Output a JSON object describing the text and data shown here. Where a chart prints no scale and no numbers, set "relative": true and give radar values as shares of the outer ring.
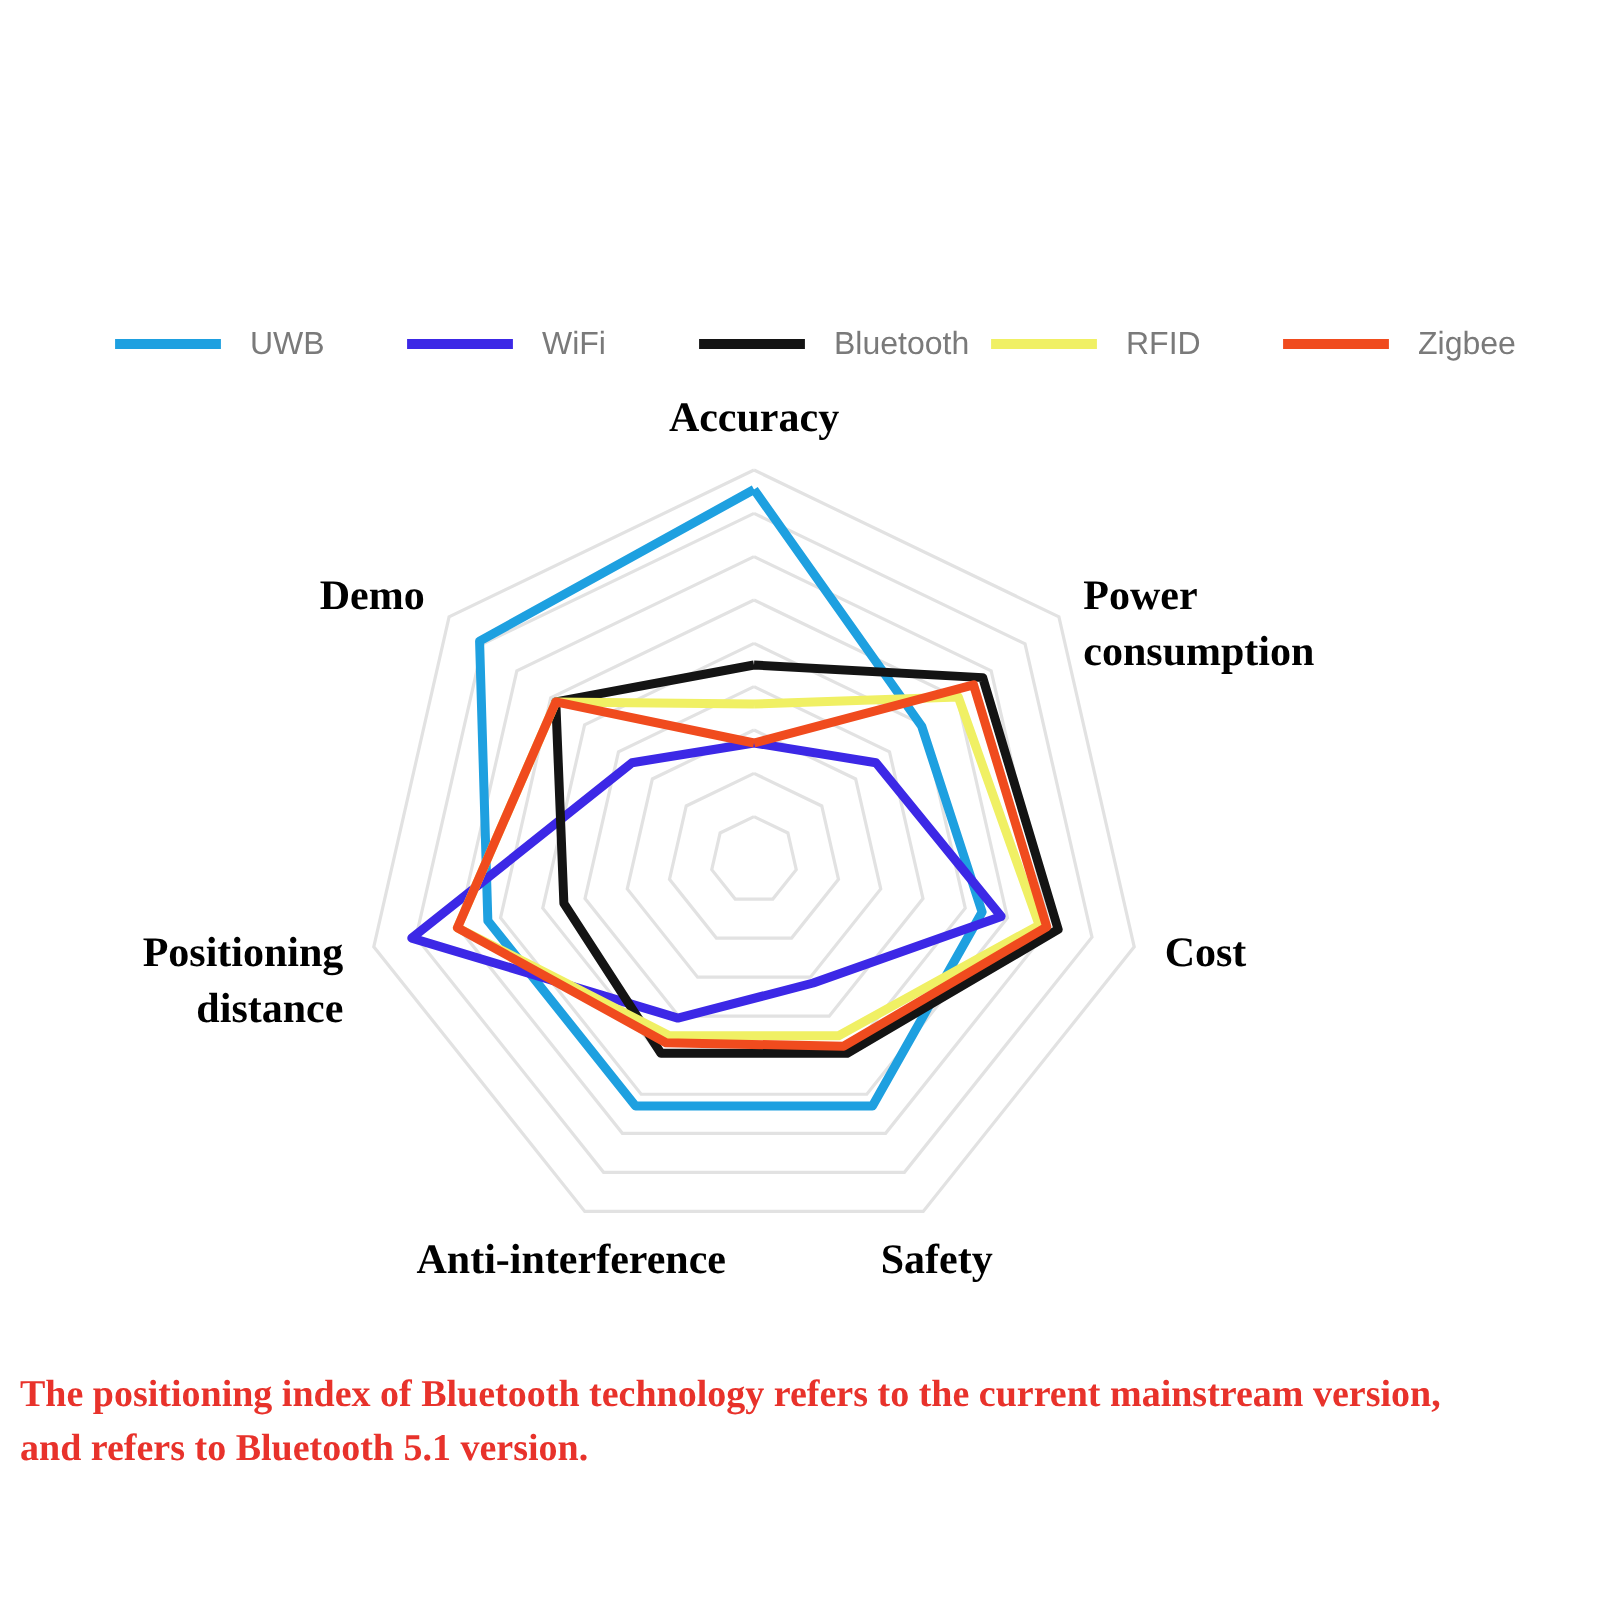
{
  "chart_data": {
    "type": "radar",
    "categories": [
      "Accuracy",
      "Power consumption",
      "Cost",
      "Safety",
      "Anti-interference",
      "Positioning distance",
      "Demo"
    ],
    "series": [
      {
        "name": "UWB",
        "color": "#1ea0e0",
        "values": [
          0.95,
          0.55,
          0.6,
          0.7,
          0.7,
          0.7,
          0.9
        ]
      },
      {
        "name": "WiFi",
        "color": "#3c28e6",
        "values": [
          0.3,
          0.4,
          0.65,
          0.35,
          0.45,
          0.9,
          0.4
        ]
      },
      {
        "name": "Bluetooth",
        "color": "#141414",
        "values": [
          0.5,
          0.75,
          0.8,
          0.55,
          0.55,
          0.5,
          0.65
        ]
      },
      {
        "name": "RFID",
        "color": "#f0f064",
        "values": [
          0.4,
          0.67,
          0.75,
          0.5,
          0.5,
          0.78,
          0.65
        ]
      },
      {
        "name": "Zigbee",
        "color": "#f04b1e",
        "values": [
          0.3,
          0.72,
          0.77,
          0.53,
          0.52,
          0.78,
          0.65
        ]
      }
    ],
    "relative": true,
    "grid": true,
    "legend": "top",
    "annotations": [
      "The positioning index of Bluetooth technology refers to the current mainstream version, and refers to Bluetooth 5.1 version."
    ]
  }
}
